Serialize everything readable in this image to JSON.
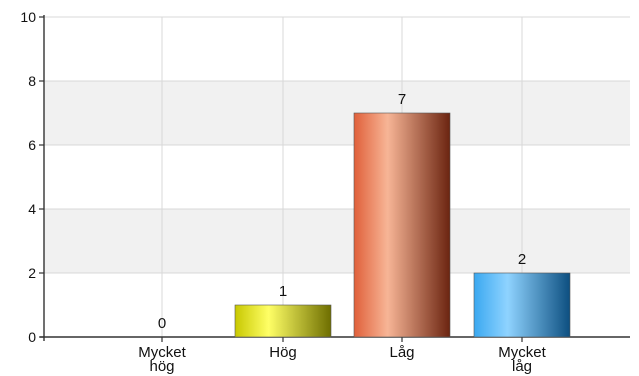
{
  "chart_data": {
    "type": "bar",
    "categories": [
      [
        "Mycket",
        "hög"
      ],
      [
        "Hög"
      ],
      [
        "Låg"
      ],
      [
        "Mycket",
        "låg"
      ]
    ],
    "values": [
      0,
      1,
      7,
      2
    ],
    "data_labels": [
      "0",
      "1",
      "7",
      "2"
    ],
    "ylim": [
      0,
      10
    ],
    "yticks": [
      0,
      2,
      4,
      6,
      8,
      10
    ],
    "title": "",
    "xlabel": "",
    "ylabel": "",
    "grid": true,
    "legend": "none",
    "bar_colors": [
      [
        "#9a9a00",
        "#e0e000"
      ],
      [
        "#c8c800",
        "#ffff66",
        "#6e6e00"
      ],
      [
        "#e0603a",
        "#f7b596",
        "#6b2410"
      ],
      [
        "#3aa8f0",
        "#8fd3ff",
        "#0d4f80"
      ]
    ]
  }
}
